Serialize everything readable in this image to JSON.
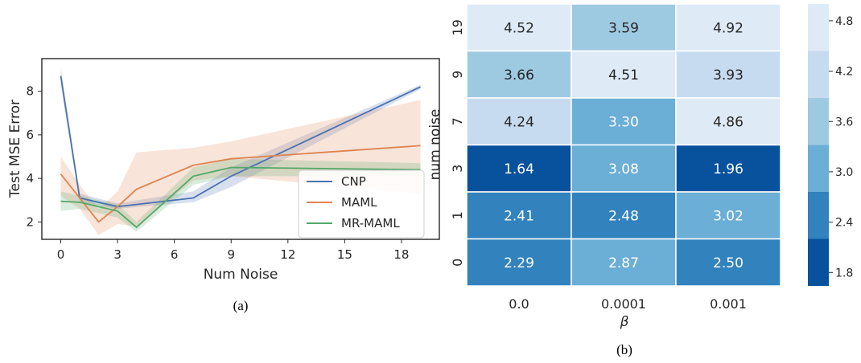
{
  "chart_data": [
    {
      "type": "line",
      "caption": "(a)",
      "xlabel": "Num Noise",
      "ylabel": "Test MSE Error",
      "xlim": [
        -1,
        20
      ],
      "ylim": [
        1.2,
        9.5
      ],
      "xticks": [
        0,
        3,
        6,
        9,
        12,
        15,
        18
      ],
      "yticks": [
        2,
        4,
        6,
        8
      ],
      "grid": false,
      "legend": "right",
      "series": [
        {
          "name": "CNP",
          "color": "#4c72b0",
          "x": [
            0,
            1,
            3,
            7,
            9,
            19
          ],
          "y": [
            8.7,
            3.1,
            2.7,
            3.1,
            4.1,
            8.2
          ],
          "lower": [
            8.3,
            2.9,
            2.6,
            2.9,
            3.6,
            8.1
          ],
          "upper": [
            9.1,
            3.3,
            2.85,
            3.4,
            4.5,
            8.3
          ]
        },
        {
          "name": "MAML",
          "color": "#dd8452",
          "x": [
            0,
            1,
            2,
            3,
            4,
            7,
            9,
            19
          ],
          "y": [
            4.2,
            3.1,
            2.0,
            2.7,
            3.5,
            4.6,
            4.9,
            5.5
          ],
          "lower": [
            3.2,
            2.6,
            1.4,
            1.9,
            1.8,
            3.9,
            4.1,
            3.3
          ],
          "upper": [
            5.0,
            3.7,
            2.6,
            3.4,
            5.2,
            5.4,
            5.7,
            7.6
          ]
        },
        {
          "name": "MR-MAML",
          "color": "#55a868",
          "x": [
            0,
            1,
            3,
            4,
            7,
            9,
            19
          ],
          "y": [
            2.95,
            2.9,
            2.5,
            1.75,
            4.1,
            4.5,
            4.4
          ],
          "lower": [
            2.5,
            2.6,
            2.2,
            1.55,
            3.7,
            4.1,
            4.1
          ],
          "upper": [
            3.4,
            3.2,
            2.8,
            2.0,
            4.5,
            4.9,
            4.7
          ]
        }
      ]
    },
    {
      "type": "heatmap",
      "caption": "(b)",
      "xlabel": "β",
      "ylabel": "num noise",
      "x_categories": [
        "0.0",
        "0.0001",
        "0.001"
      ],
      "y_categories": [
        "19",
        "9",
        "7",
        "3",
        "1",
        "0"
      ],
      "values": [
        [
          "4.52",
          "3.59",
          "4.92"
        ],
        [
          "3.66",
          "4.51",
          "3.93"
        ],
        [
          "4.24",
          "3.30",
          "4.86"
        ],
        [
          "1.64",
          "3.08",
          "1.96"
        ],
        [
          "2.41",
          "2.48",
          "3.02"
        ],
        [
          "2.29",
          "2.87",
          "2.50"
        ]
      ],
      "colorbar": {
        "ticks": [
          "1.8",
          "2.4",
          "3.0",
          "3.6",
          "4.2",
          "4.8"
        ],
        "bins": [
          1.64,
          2.2,
          2.76,
          3.32,
          3.88,
          4.44,
          5.0
        ],
        "colors": [
          "#08519c",
          "#3182bd",
          "#6baed6",
          "#9ecae1",
          "#c6dbef",
          "#deebf7"
        ]
      }
    }
  ]
}
